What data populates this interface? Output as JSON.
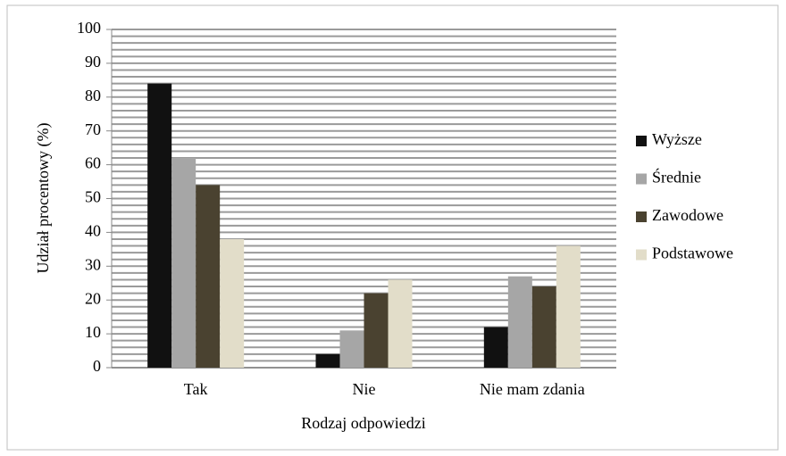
{
  "chart_data": {
    "type": "bar",
    "x_label": "Rodzaj odpowiedzi",
    "y_label": "Udział procentowy (%)",
    "categories": [
      "Tak",
      "Nie",
      "Nie mam zdania"
    ],
    "series": [
      {
        "name": "Wyższe",
        "color": "#111111",
        "values": [
          84,
          4,
          12
        ]
      },
      {
        "name": "Średnie",
        "color": "#a6a6a6",
        "values": [
          62,
          11,
          27
        ]
      },
      {
        "name": "Zawodowe",
        "color": "#4a4230",
        "values": [
          54,
          22,
          24
        ]
      },
      {
        "name": "Podstawowe",
        "color": "#e2ddc9",
        "values": [
          38,
          26,
          36
        ]
      }
    ],
    "ylim": [
      0,
      100
    ],
    "yticks": [
      0,
      10,
      20,
      30,
      40,
      50,
      60,
      70,
      80,
      90,
      100
    ],
    "minor_yticks": [
      2,
      4,
      6,
      8,
      12,
      14,
      16,
      18,
      22,
      24,
      26,
      28,
      32,
      34,
      36,
      38,
      42,
      44,
      46,
      48,
      52,
      54,
      56,
      58,
      62,
      64,
      66,
      68,
      72,
      74,
      76,
      78,
      82,
      84,
      86,
      88,
      92,
      94,
      96,
      98
    ],
    "grid": true,
    "legend": "right"
  }
}
